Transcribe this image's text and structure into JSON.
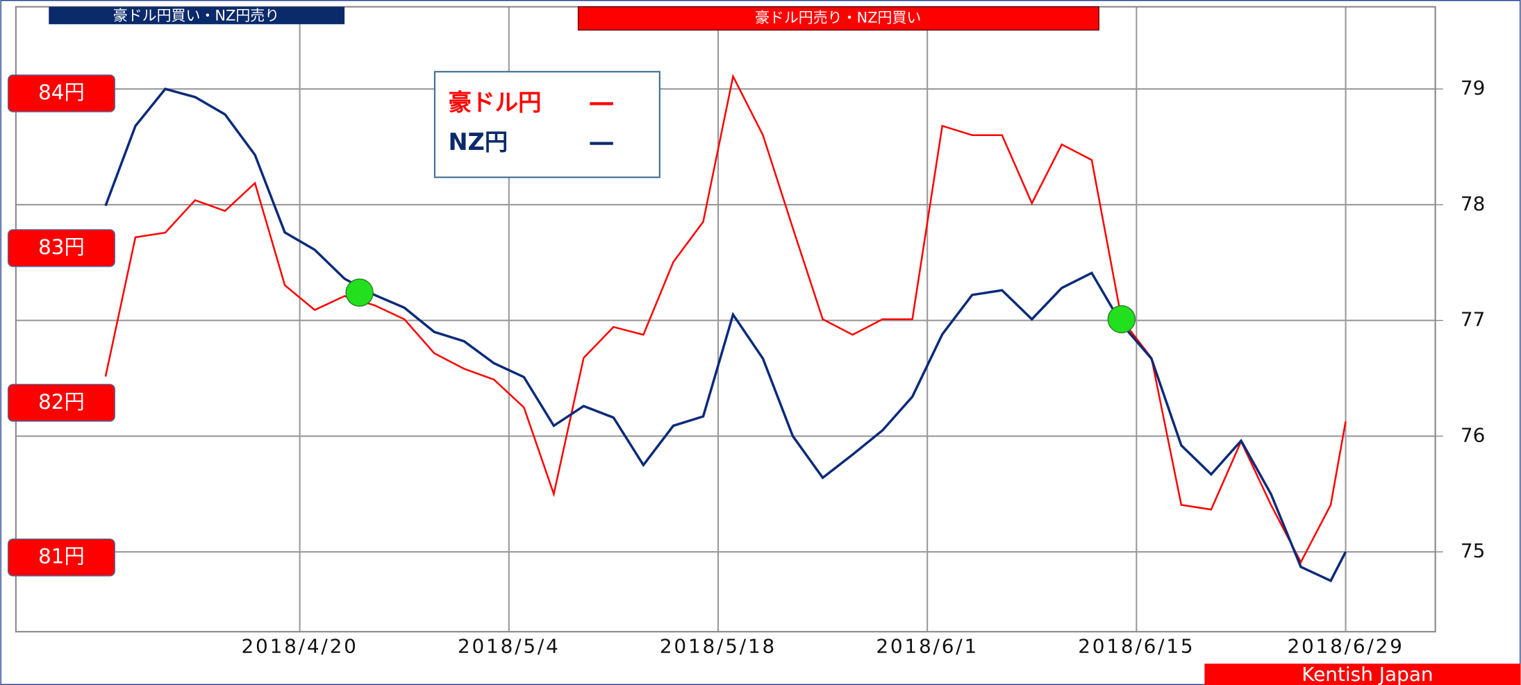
{
  "chart_data": {
    "type": "line",
    "banners": [
      "豪ドル円買い・NZ円売り",
      "豪ドル円売り・NZ円買い"
    ],
    "credit": "Kentish Japan",
    "x": [
      "2018-04-07",
      "2018-04-09",
      "2018-04-11",
      "2018-04-13",
      "2018-04-15",
      "2018-04-17",
      "2018-04-19",
      "2018-04-21",
      "2018-04-23",
      "2018-04-25",
      "2018-04-27",
      "2018-04-29",
      "2018-05-01",
      "2018-05-03",
      "2018-05-05",
      "2018-05-07",
      "2018-05-09",
      "2018-05-11",
      "2018-05-13",
      "2018-05-15",
      "2018-05-17",
      "2018-05-19",
      "2018-05-21",
      "2018-05-23",
      "2018-05-25",
      "2018-05-27",
      "2018-05-29",
      "2018-05-31",
      "2018-06-02",
      "2018-06-04",
      "2018-06-06",
      "2018-06-08",
      "2018-06-10",
      "2018-06-12",
      "2018-06-14",
      "2018-06-16",
      "2018-06-18",
      "2018-06-20",
      "2018-06-22",
      "2018-06-24",
      "2018-06-26",
      "2018-06-28",
      "2018-06-29"
    ],
    "series": [
      {
        "name": "豪ドル円",
        "color": "#ff0000",
        "axis": "y",
        "values": [
          82.17,
          83.07,
          83.1,
          83.31,
          83.24,
          83.42,
          82.76,
          82.6,
          82.69,
          82.63,
          82.54,
          82.32,
          82.22,
          82.15,
          81.97,
          81.41,
          82.29,
          82.49,
          82.44,
          82.91,
          83.17,
          84.11,
          83.73,
          83.13,
          82.54,
          82.44,
          82.54,
          82.54,
          83.79,
          83.73,
          83.73,
          83.29,
          83.67,
          83.57,
          82.54,
          82.29,
          81.34,
          81.31,
          81.75,
          81.34,
          80.97,
          81.34,
          81.88
        ]
      },
      {
        "name": "NZ円",
        "color": "#0b2a7a",
        "axis": "y2",
        "values": [
          77.99,
          78.68,
          79.0,
          78.93,
          78.78,
          78.43,
          77.76,
          77.61,
          77.36,
          77.22,
          77.11,
          76.9,
          76.82,
          76.63,
          76.51,
          76.09,
          76.26,
          76.16,
          75.75,
          76.09,
          76.17,
          77.05,
          76.67,
          76.0,
          75.64,
          75.84,
          76.05,
          76.34,
          76.88,
          77.22,
          77.26,
          77.01,
          77.28,
          77.41,
          76.97,
          76.67,
          75.92,
          75.67,
          75.96,
          75.5,
          74.87,
          74.75,
          75.0
        ]
      }
    ],
    "markers": {
      "color": "#22e01e",
      "x": [
        "2018-04-24",
        "2018-06-14"
      ],
      "values": [
        77.24,
        77.01
      ]
    },
    "xlim": [
      "2018-04-01",
      "2018-07-05"
    ],
    "xticks": [
      {
        "value": "2018-04-20",
        "label": "2018/4/20"
      },
      {
        "value": "2018-05-04",
        "label": "2018/5/4"
      },
      {
        "value": "2018-05-18",
        "label": "2018/5/18"
      },
      {
        "value": "2018-06-01",
        "label": "2018/6/1"
      },
      {
        "value": "2018-06-15",
        "label": "2018/6/15"
      },
      {
        "value": "2018-06-29",
        "label": "2018/6/29"
      }
    ],
    "ylim": [
      80.52,
      84.56
    ],
    "yticks": [
      {
        "value": 81,
        "label": "81円"
      },
      {
        "value": 82,
        "label": "82円"
      },
      {
        "value": 83,
        "label": "83円"
      },
      {
        "value": 84,
        "label": "84円"
      }
    ],
    "y2lim": [
      74.31,
      79.71
    ],
    "y2ticks": [
      75,
      76,
      77,
      78,
      79
    ],
    "grid": true
  }
}
